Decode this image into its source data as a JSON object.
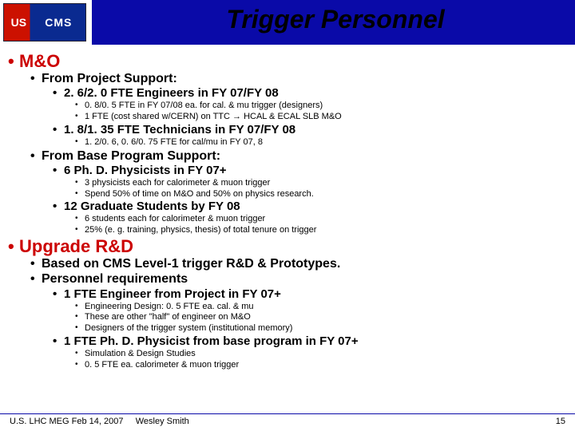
{
  "colors": {
    "blue": "#0a0aa8",
    "red": "#cc0000",
    "logo_red": "#cc1100",
    "logo_blue": "#0a2a90",
    "shadow": "#9a9a9a",
    "background": "#ffffff"
  },
  "logo": {
    "left": "US",
    "right": "CMS"
  },
  "title": "Trigger Personnel",
  "sections": {
    "mo": {
      "heading": "M&O",
      "projectSupport": {
        "label": "From Project Support:",
        "engineers": {
          "line": "2. 6/2. 0 FTE Engineers in FY 07/FY 08",
          "detail1": "0. 8/0. 5 FTE in FY 07/08 ea. for cal. & mu trigger (designers)",
          "detail2": "1 FTE (cost shared w/CERN) on TTC → HCAL & ECAL SLB M&O"
        },
        "technicians": {
          "line": "1. 8/1. 35 FTE Technicians in FY 07/FY 08",
          "detail1": "1. 2/0. 6, 0. 6/0. 75 FTE for cal/mu in FY 07, 8"
        }
      },
      "baseProgram": {
        "label": "From Base Program Support:",
        "physicists": {
          "line": "6 Ph. D. Physicists in FY 07+",
          "detail1": "3 physicists each for calorimeter & muon trigger",
          "detail2": "Spend 50% of time on M&O and 50% on physics research."
        },
        "grads": {
          "line": "12 Graduate Students by FY 08",
          "detail1": "6 students each for calorimeter & muon trigger",
          "detail2": "25% (e. g. training, physics, thesis) of total tenure on trigger"
        }
      }
    },
    "upgrade": {
      "heading": "Upgrade R&D",
      "b1": "Based on CMS Level-1 trigger R&D & Prototypes.",
      "b2": "Personnel requirements",
      "engineer": {
        "line": "1 FTE Engineer from Project in FY 07+",
        "detail1": "Engineering Design:  0. 5 FTE ea. cal. & mu",
        "detail2": "These are other \"half\" of engineer on M&O",
        "detail3": "Designers of the trigger system (institutional memory)"
      },
      "physicist": {
        "line": "1 FTE Ph. D. Physicist from base program in FY 07+",
        "detail1": "Simulation & Design Studies",
        "detail2": "0. 5  FTE ea. calorimeter & muon trigger"
      }
    }
  },
  "footer": {
    "meeting": "U.S. LHC MEG  Feb 14, 2007",
    "author": "Wesley Smith",
    "page": "15"
  }
}
